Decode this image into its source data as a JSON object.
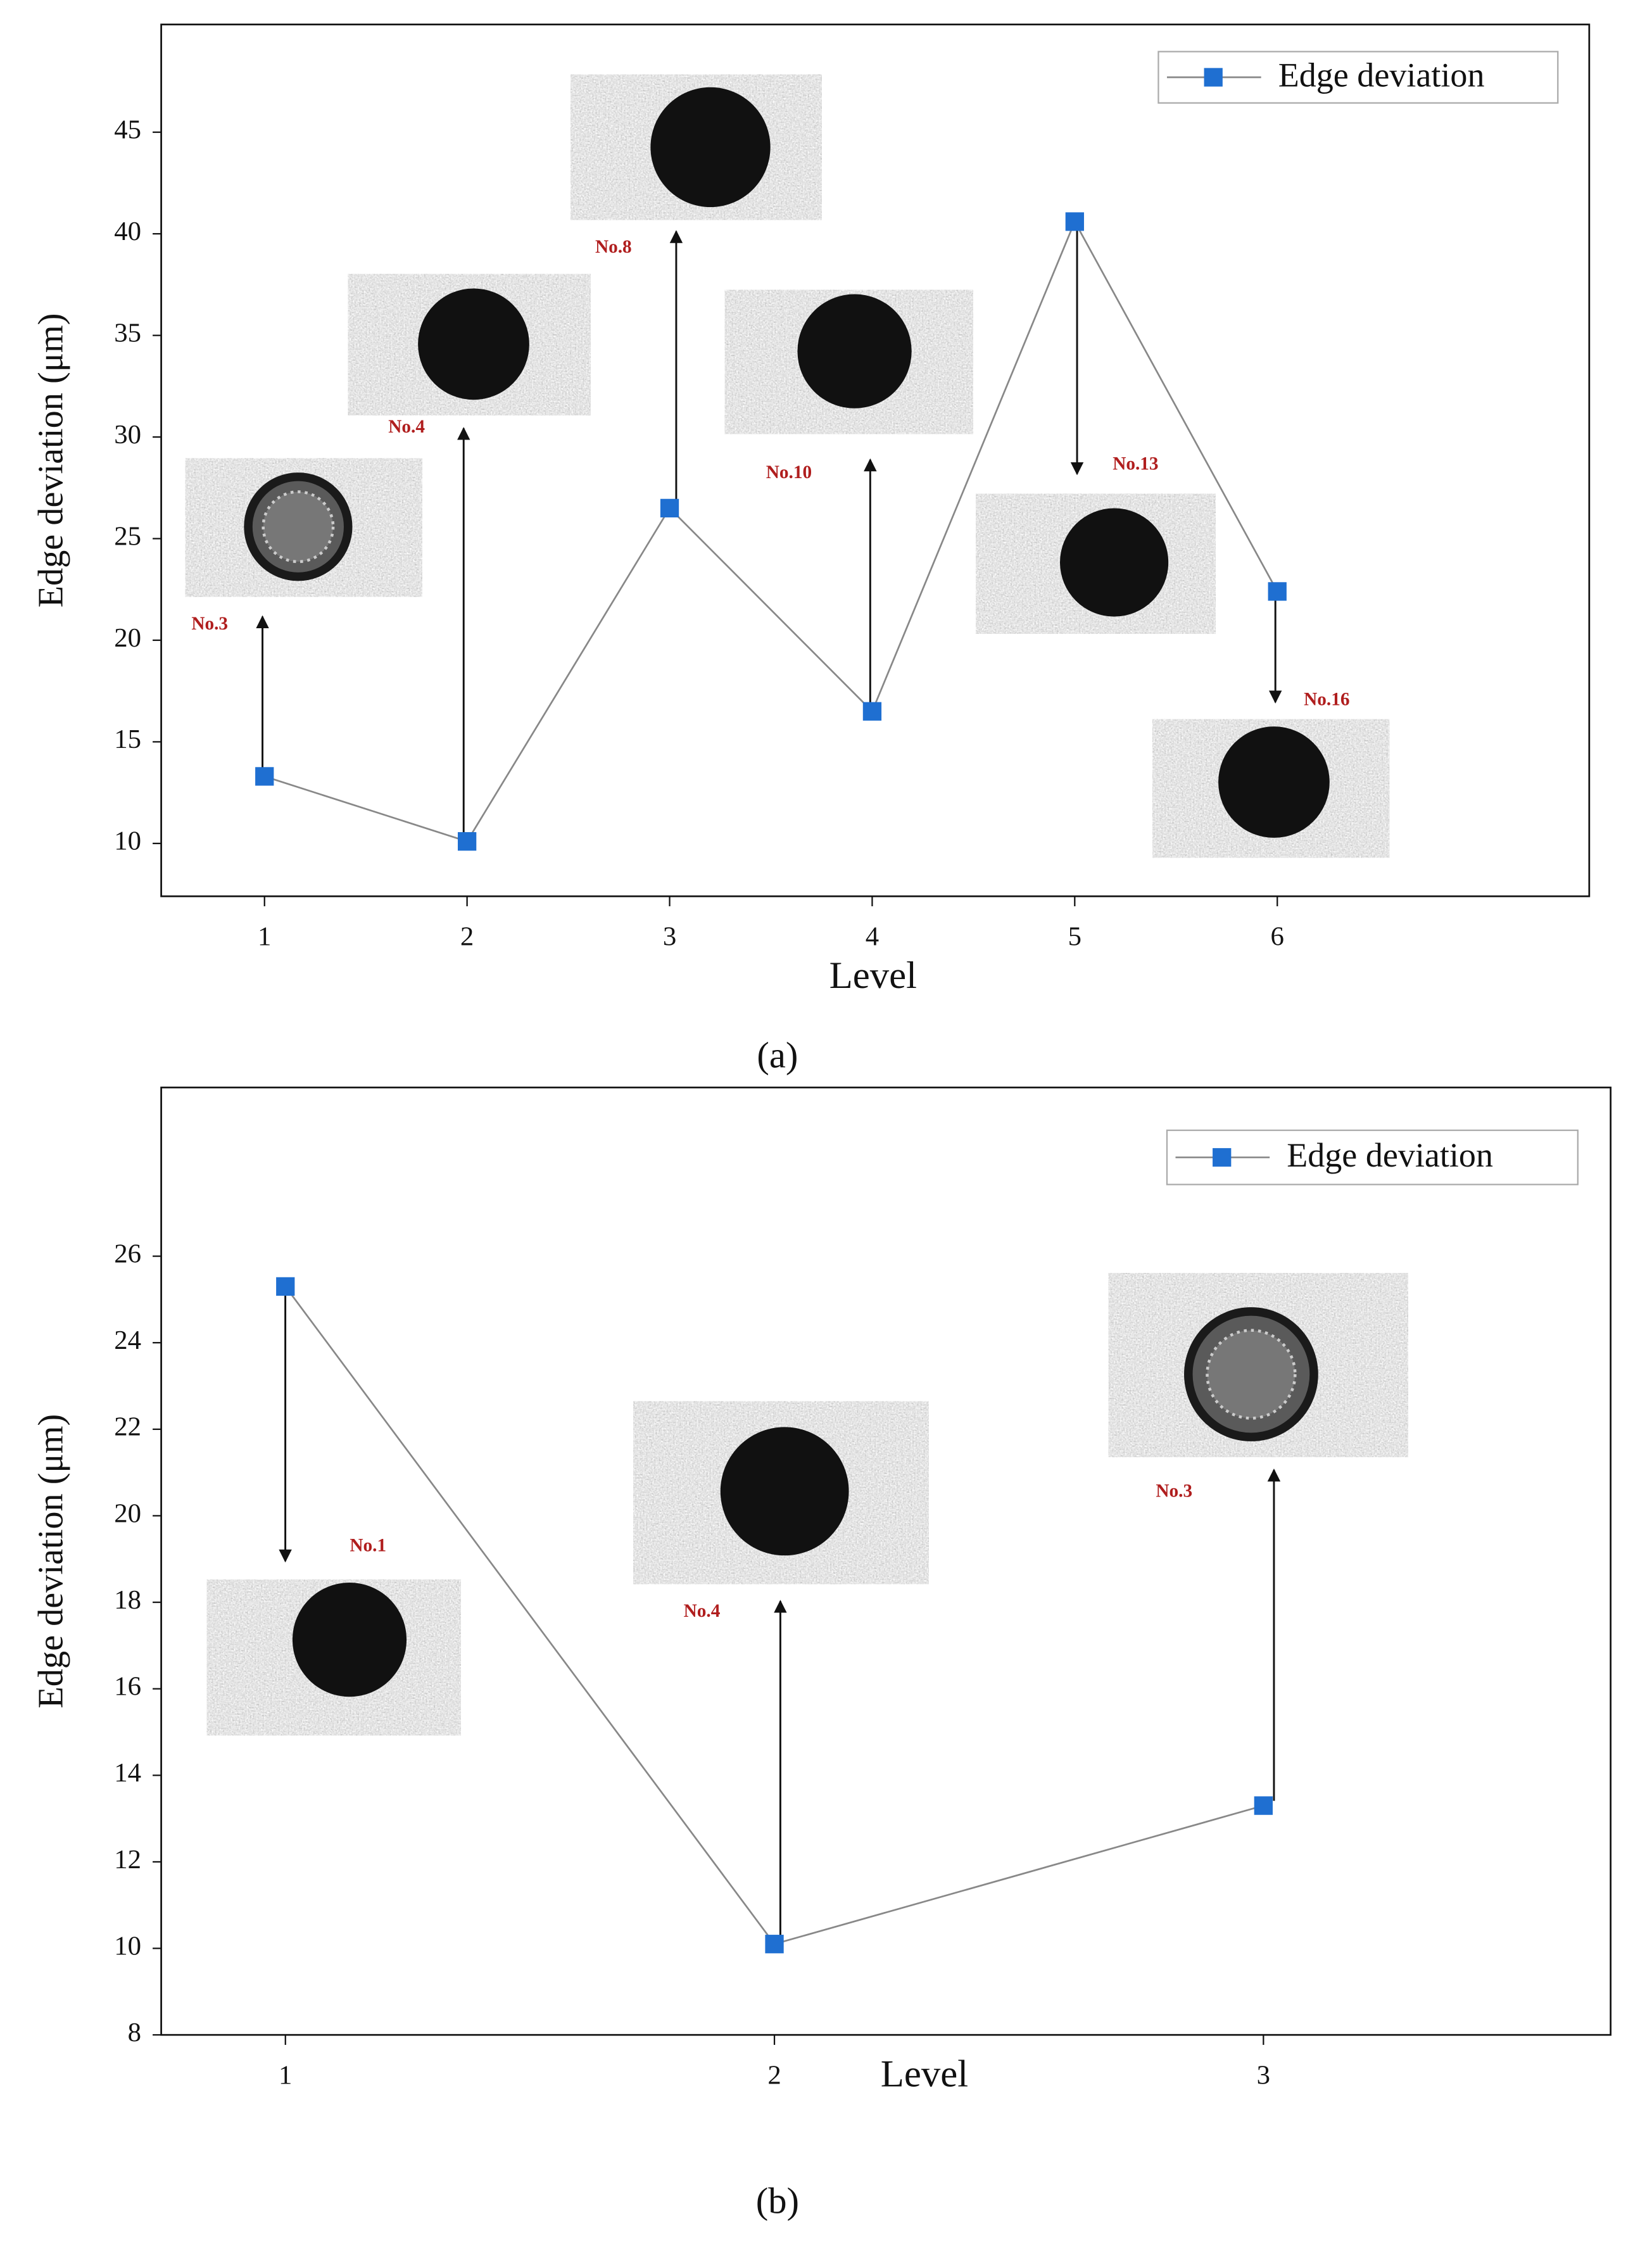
{
  "chart_data": [
    {
      "type": "line",
      "caption": "(a)",
      "xlabel": "Level",
      "ylabel": "Edge deviation (μm)",
      "x": [
        1,
        2,
        3,
        4,
        5,
        6
      ],
      "series": [
        {
          "name": "Edge deviation",
          "color": "#1f6fd1",
          "values": [
            13.3,
            10.1,
            26.5,
            16.5,
            40.6,
            22.4
          ]
        }
      ],
      "xlim": [
        0.49,
        7.54
      ],
      "xticks": [
        1,
        2,
        3,
        4,
        5,
        6
      ],
      "ylim": [
        7.4,
        50.3
      ],
      "yticks": [
        10,
        15,
        20,
        25,
        30,
        35,
        40,
        45
      ],
      "legend": "upper right",
      "annotations": [
        "No.3",
        "No.4",
        "No.8",
        "No.10",
        "No.13",
        "No.16"
      ]
    },
    {
      "type": "line",
      "caption": "(b)",
      "xlabel": "Level",
      "ylabel": "Edge deviation (μm)",
      "x": [
        1,
        2,
        3
      ],
      "series": [
        {
          "name": "Edge deviation",
          "color": "#1f6fd1",
          "values": [
            25.3,
            10.1,
            13.3
          ]
        }
      ],
      "xlim": [
        0.746,
        3.71
      ],
      "xticks": [
        1,
        2,
        3
      ],
      "ylim": [
        8,
        29.9
      ],
      "yticks": [
        8,
        10,
        12,
        14,
        16,
        18,
        20,
        22,
        24,
        26
      ],
      "legend": "upper right",
      "annotations": [
        "No.1",
        "No.4",
        "No.3"
      ]
    }
  ]
}
